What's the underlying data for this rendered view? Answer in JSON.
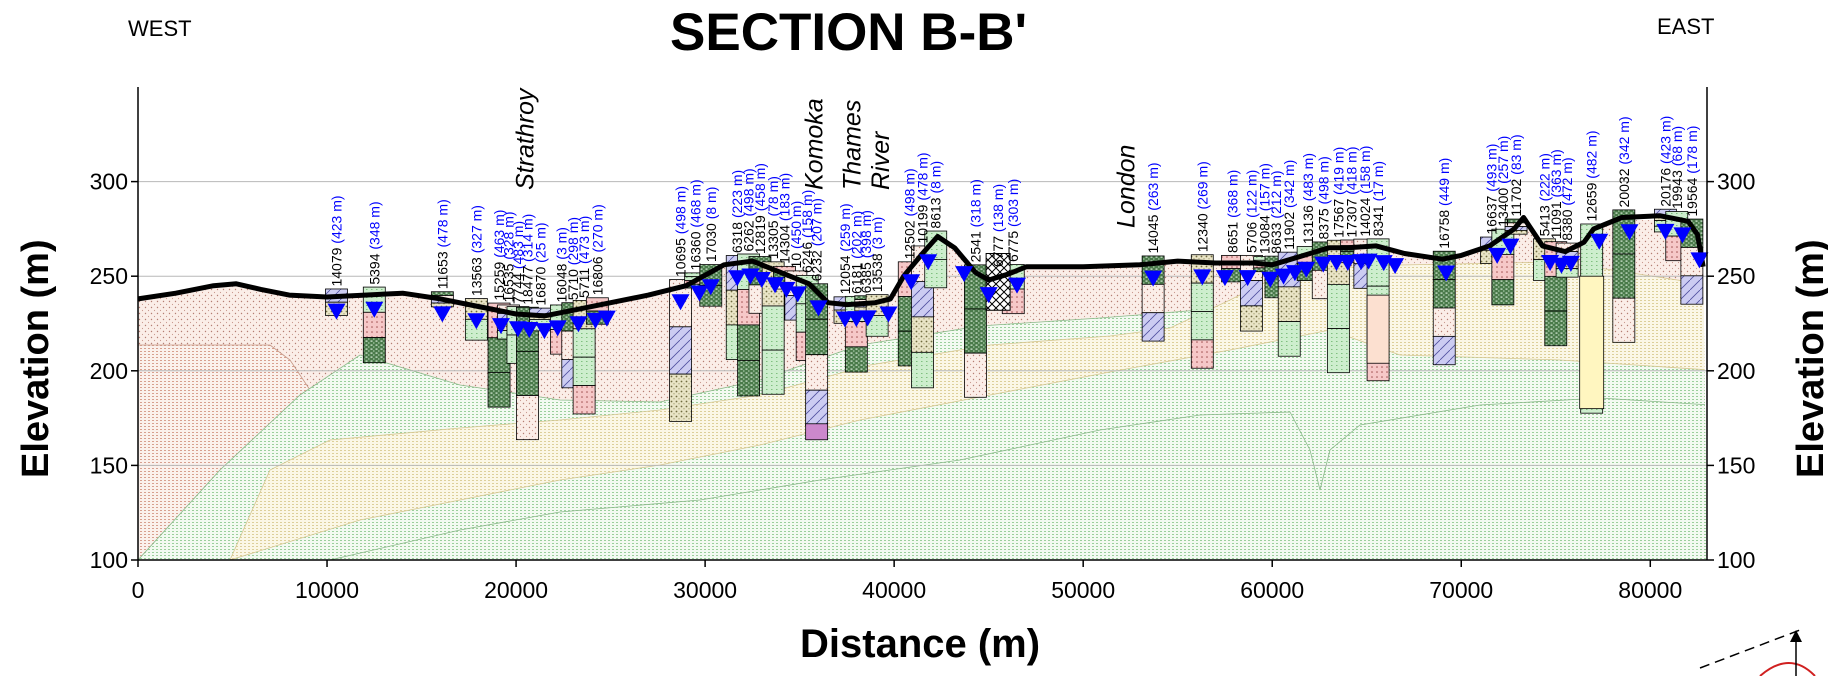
{
  "title": "SECTION B-B'",
  "direction_left": "WEST",
  "direction_right": "EAST",
  "x_axis": {
    "label": "Distance (m)",
    "min": 0,
    "max": 83000,
    "ticks": [
      0,
      10000,
      20000,
      30000,
      40000,
      50000,
      60000,
      70000,
      80000
    ],
    "tick_labels": [
      "0",
      "10000",
      "20000",
      "30000",
      "40000",
      "50000",
      "60000",
      "70000",
      "80000"
    ]
  },
  "y_axis": {
    "label": "Elevation (m)",
    "min": 100,
    "max": 350,
    "ticks": [
      100,
      150,
      200,
      250,
      300
    ],
    "tick_labels": [
      "100",
      "150",
      "200",
      "250",
      "300"
    ],
    "grid": true
  },
  "place_names": [
    {
      "text": "Strathroy",
      "x": 20500
    },
    {
      "text": "Komoka",
      "x": 35800
    },
    {
      "text": "Thames",
      "x": 37800
    },
    {
      "text": "River",
      "x": 39300
    },
    {
      "text": "London",
      "x": 52300
    }
  ],
  "ground_surface": [
    [
      0,
      238
    ],
    [
      2000,
      241
    ],
    [
      4000,
      245
    ],
    [
      5200,
      246
    ],
    [
      6500,
      243
    ],
    [
      8000,
      240
    ],
    [
      10000,
      239
    ],
    [
      12000,
      240
    ],
    [
      14000,
      241
    ],
    [
      16000,
      238
    ],
    [
      18000,
      234
    ],
    [
      20000,
      230
    ],
    [
      21500,
      229
    ],
    [
      23000,
      232
    ],
    [
      25000,
      236
    ],
    [
      27000,
      240
    ],
    [
      29000,
      245
    ],
    [
      31000,
      256
    ],
    [
      32500,
      258
    ],
    [
      34000,
      252
    ],
    [
      35500,
      246
    ],
    [
      36500,
      236
    ],
    [
      37500,
      235
    ],
    [
      39000,
      236
    ],
    [
      39800,
      238
    ],
    [
      40500,
      250
    ],
    [
      41500,
      262
    ],
    [
      42300,
      271
    ],
    [
      43200,
      265
    ],
    [
      44300,
      252
    ],
    [
      45000,
      248
    ],
    [
      46000,
      251
    ],
    [
      47000,
      255
    ],
    [
      50000,
      255
    ],
    [
      53000,
      256
    ],
    [
      55000,
      258
    ],
    [
      57000,
      257
    ],
    [
      59000,
      257
    ],
    [
      60000,
      256
    ],
    [
      61000,
      259
    ],
    [
      62000,
      262
    ],
    [
      63000,
      265
    ],
    [
      64000,
      265
    ],
    [
      65500,
      266
    ],
    [
      67000,
      262
    ],
    [
      69000,
      259
    ],
    [
      70000,
      261
    ],
    [
      71500,
      266
    ],
    [
      72800,
      275
    ],
    [
      73300,
      281
    ],
    [
      74300,
      266
    ],
    [
      75500,
      263
    ],
    [
      76500,
      268
    ],
    [
      77000,
      275
    ],
    [
      78500,
      281
    ],
    [
      80500,
      282
    ],
    [
      82000,
      279
    ],
    [
      82500,
      272
    ],
    [
      82800,
      255
    ]
  ],
  "water_level_markers_x": [
    10500,
    12500,
    16100,
    17900,
    19200,
    20100,
    20700,
    21500,
    22200,
    23300,
    24200,
    24800,
    28700,
    29700,
    30300,
    31700,
    32400,
    33000,
    33700,
    34300,
    34900,
    36000,
    37400,
    38000,
    38600,
    39700,
    40900,
    41800,
    43700,
    45000,
    46500,
    53700,
    56300,
    57500,
    58700,
    59900,
    60600,
    61200,
    61800,
    62700,
    63400,
    64000,
    64700,
    65100,
    65900,
    66500,
    69200,
    71900,
    72600,
    74700,
    75300,
    75800,
    77300,
    78900,
    80800,
    81700,
    82600
  ],
  "well_labels": [
    {
      "id": "14079",
      "dist": "(423 m)",
      "x": 10500
    },
    {
      "id": "5394",
      "dist": "(348 m)",
      "x": 12500
    },
    {
      "id": "11653",
      "dist": "(478 m)",
      "x": 16100
    },
    {
      "id": "13563",
      "dist": "(327 m)",
      "x": 17900
    },
    {
      "id": "15259",
      "dist": "(463 m)",
      "x": 19100
    },
    {
      "id": "16535",
      "dist": "(328 m)",
      "x": 19600
    },
    {
      "id": "7744",
      "dist": "(483 m)",
      "x": 20100
    },
    {
      "id": "18477",
      "dist": "(314 m)",
      "x": 20600
    },
    {
      "id": "16870",
      "dist": "(25 m)",
      "x": 21300
    },
    {
      "id": "16048",
      "dist": "(3 m)",
      "x": 22400
    },
    {
      "id": "5710",
      "dist": "(298 m)",
      "x": 23000
    },
    {
      "id": "5711",
      "dist": "(473 m)",
      "x": 23600
    },
    {
      "id": "16806",
      "dist": "(270 m)",
      "x": 24300
    },
    {
      "id": "10695",
      "dist": "(498 m)",
      "x": 28700
    },
    {
      "id": "16360",
      "dist": "(468 m)",
      "x": 29500
    },
    {
      "id": "17030",
      "dist": "(8 m)",
      "x": 30300
    },
    {
      "id": "6318",
      "dist": "(223 m)",
      "x": 31700
    },
    {
      "id": "6262",
      "dist": "(498 m)",
      "x": 32300
    },
    {
      "id": "12819",
      "dist": "(458 m)",
      "x": 32900
    },
    {
      "id": "13305",
      "dist": "(78 m)",
      "x": 33600
    },
    {
      "id": "14304",
      "dist": "(183 m)",
      "x": 34200
    },
    {
      "id": "10",
      "dist": "(450 m)",
      "x": 34800
    },
    {
      "id": "6246",
      "dist": "(158 m)",
      "x": 35400
    },
    {
      "id": "6232",
      "dist": "(207 m)",
      "x": 35900
    },
    {
      "id": "12054",
      "dist": "(259 m)",
      "x": 37400
    },
    {
      "id": "6181",
      "dist": "(202 m)",
      "x": 38000
    },
    {
      "id": "6385",
      "dist": "(398 m)",
      "x": 38500
    },
    {
      "id": "13538",
      "dist": "(3 m)",
      "x": 39100
    },
    {
      "id": "12502",
      "dist": "(498 m)",
      "x": 40800
    },
    {
      "id": "10199",
      "dist": "(478 m)",
      "x": 41500
    },
    {
      "id": "8613",
      "dist": "(8 m)",
      "x": 42200
    },
    {
      "id": "2541",
      "dist": "(318 m)",
      "x": 44300
    },
    {
      "id": "6777",
      "dist": "(138 m)",
      "x": 45500
    },
    {
      "id": "6775",
      "dist": "(303 m)",
      "x": 46300
    },
    {
      "id": "14045",
      "dist": "(263 m)",
      "x": 53700
    },
    {
      "id": "12340",
      "dist": "(269 m)",
      "x": 56300
    },
    {
      "id": "8651",
      "dist": "(368 m)",
      "x": 57900
    },
    {
      "id": "5706",
      "dist": "(122 m)",
      "x": 58900
    },
    {
      "id": "13084",
      "dist": "(157 m)",
      "x": 59600
    },
    {
      "id": "8633",
      "dist": "(212 m)",
      "x": 60200
    },
    {
      "id": "11902",
      "dist": "(342 m)",
      "x": 60900
    },
    {
      "id": "13136",
      "dist": "(483 m)",
      "x": 61900
    },
    {
      "id": "8375",
      "dist": "(498 m)",
      "x": 62700
    },
    {
      "id": "17567",
      "dist": "(419 m)",
      "x": 63500
    },
    {
      "id": "17307",
      "dist": "(418 m)",
      "x": 64200
    },
    {
      "id": "14024",
      "dist": "(158 m)",
      "x": 64900
    },
    {
      "id": "8341",
      "dist": "(17 m)",
      "x": 65600
    },
    {
      "id": "16758",
      "dist": "(449 m)",
      "x": 69100
    },
    {
      "id": "16637",
      "dist": "(493 m)",
      "x": 71600
    },
    {
      "id": "13400",
      "dist": "(257 m)",
      "x": 72200
    },
    {
      "id": "11702",
      "dist": "(83 m)",
      "x": 72900
    },
    {
      "id": "5413",
      "dist": "(222 m)",
      "x": 74400
    },
    {
      "id": "11091",
      "dist": "(363 m)",
      "x": 75000
    },
    {
      "id": "8380",
      "dist": "(472 m)",
      "x": 75600
    },
    {
      "id": "12659",
      "dist": "(482 m)",
      "x": 76900
    },
    {
      "id": "20032",
      "dist": "(342 m)",
      "x": 78600
    },
    {
      "id": "20176",
      "dist": "(423 m)",
      "x": 80800
    },
    {
      "id": "19943",
      "dist": "(68 m)",
      "x": 81400
    },
    {
      "id": "19564",
      "dist": "(178 m)",
      "x": 82200
    }
  ],
  "colors": {
    "ground_line": "#000000",
    "water_marker": "#0000ff",
    "well_label_dist": "#0000ff",
    "gridline": "#b8b8b8",
    "lavender_unit": "#c8c8f0",
    "green_unit": "#c8f0c8",
    "dark_green_unit": "#3d6e3d",
    "olive_unit": "#c9c39a",
    "pink_unit": "#f5c0c0",
    "tan_unit": "#f5d7c0",
    "purple_unit": "#cc88cc",
    "peach_unit": "#fce0d0",
    "pale_yellow_unit": "#fff6c0"
  }
}
